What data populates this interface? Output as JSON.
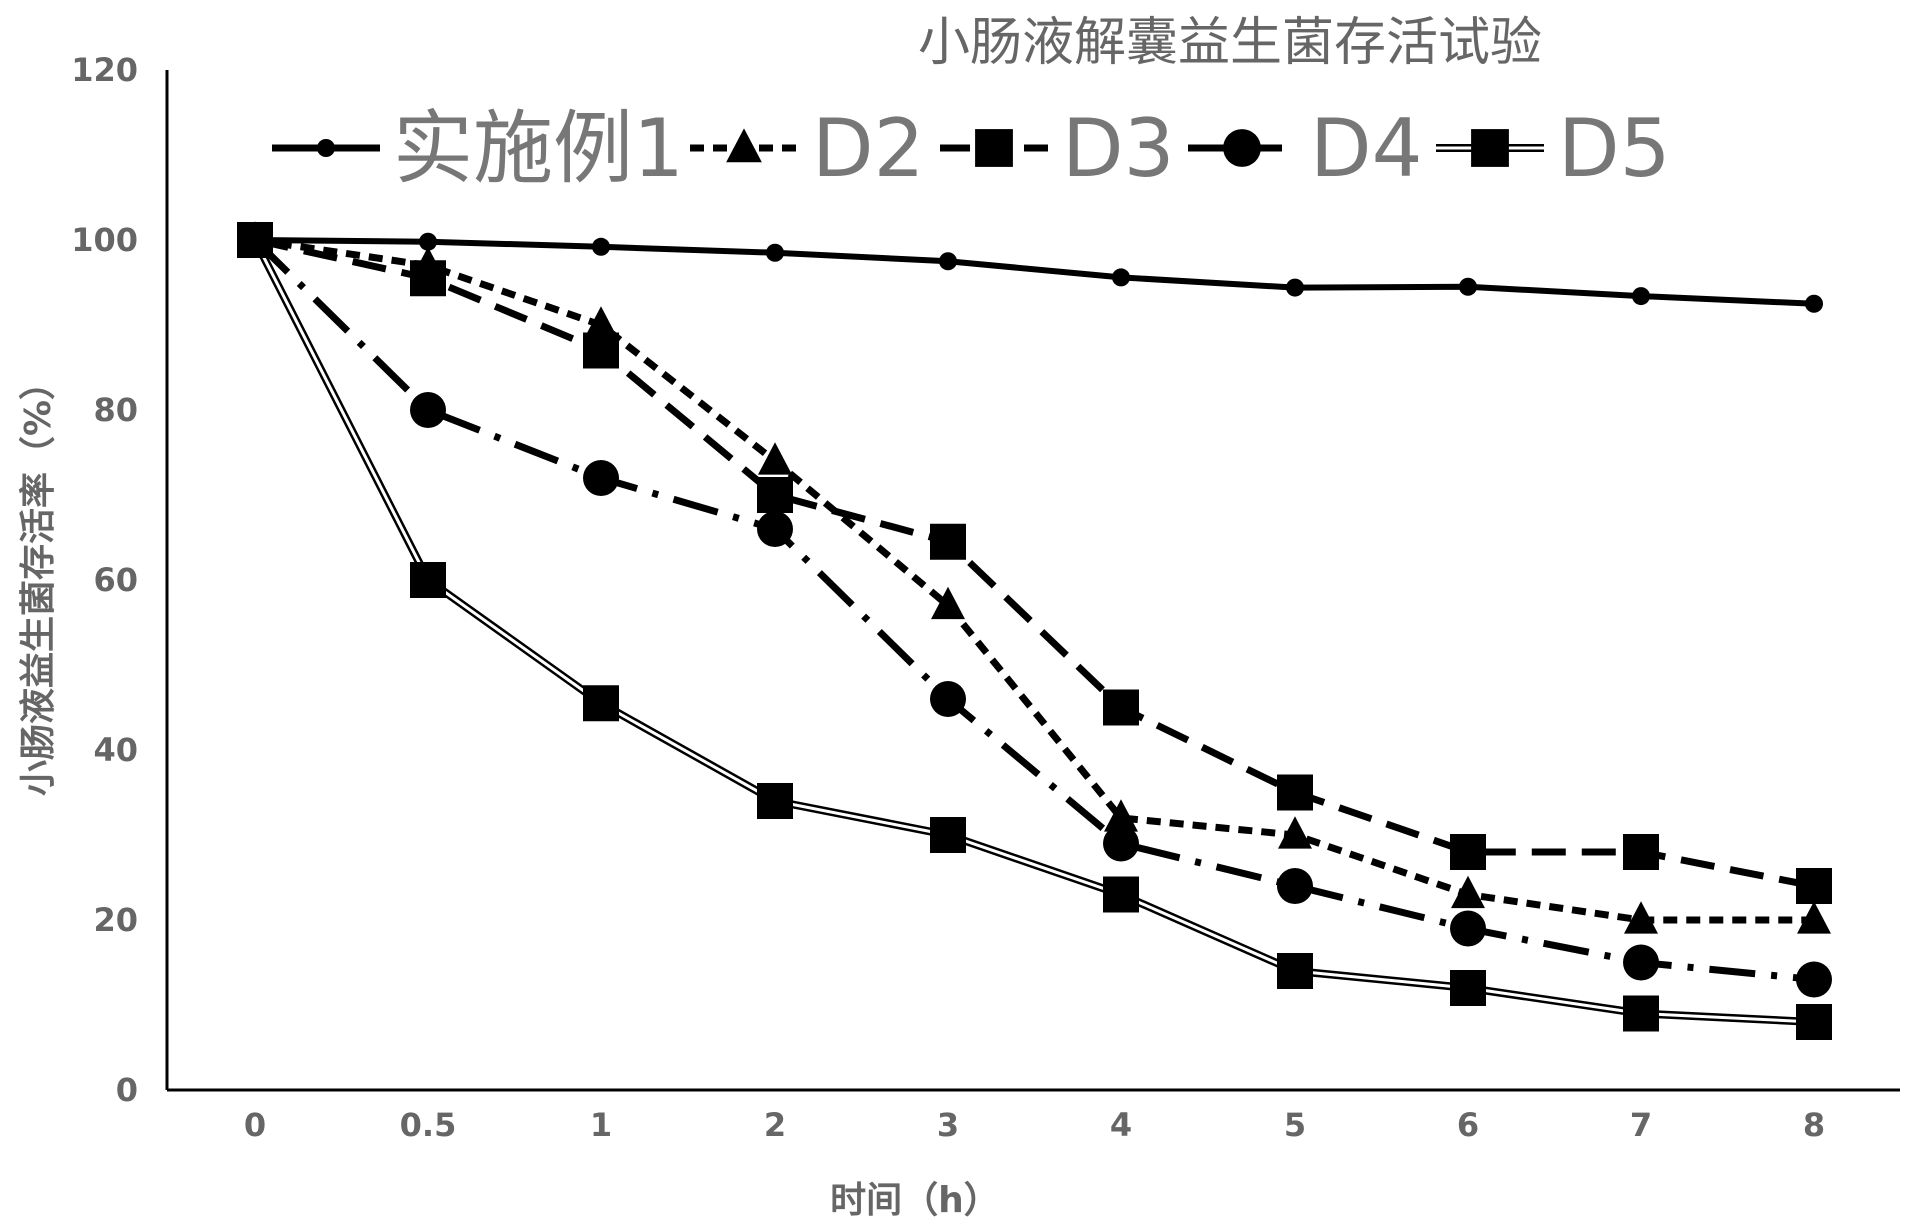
{
  "chart_data": {
    "type": "line",
    "title": "小肠液解囊益生菌存活试验",
    "xlabel": "时间（h）",
    "ylabel": "小肠液益生菌存活率（%）",
    "ylim": [
      0,
      120
    ],
    "yticks": [
      0,
      20,
      40,
      60,
      80,
      100,
      120
    ],
    "categories": [
      "0",
      "0.5",
      "1",
      "2",
      "3",
      "4",
      "5",
      "6",
      "7",
      "8"
    ],
    "legend_position": "top",
    "grid": false,
    "series": [
      {
        "name": "实施例1",
        "marker": "small-circle",
        "line": "solid",
        "color": "#000000",
        "values": [
          100,
          99.8,
          99.2,
          98.5,
          97.5,
          95.6,
          94.4,
          94.5,
          93.4,
          92.5
        ]
      },
      {
        "name": "D2",
        "marker": "triangle",
        "line": "dash",
        "color": "#000000",
        "values": [
          100,
          97,
          90,
          74,
          57,
          32,
          30,
          23,
          20,
          20
        ]
      },
      {
        "name": "D3",
        "marker": "square",
        "line": "long-dash",
        "color": "#000000",
        "values": [
          100,
          95.5,
          87,
          70,
          64.5,
          45,
          35,
          28,
          28,
          24
        ]
      },
      {
        "name": "D4",
        "marker": "circle",
        "line": "long-dash-dot",
        "color": "#000000",
        "values": [
          100,
          80,
          72,
          66,
          46,
          29,
          24,
          19,
          15,
          13
        ]
      },
      {
        "name": "D5",
        "marker": "square",
        "line": "double",
        "color": "#000000",
        "values": [
          100,
          60,
          45.5,
          34,
          30,
          23,
          14,
          12,
          9,
          8
        ]
      }
    ]
  }
}
